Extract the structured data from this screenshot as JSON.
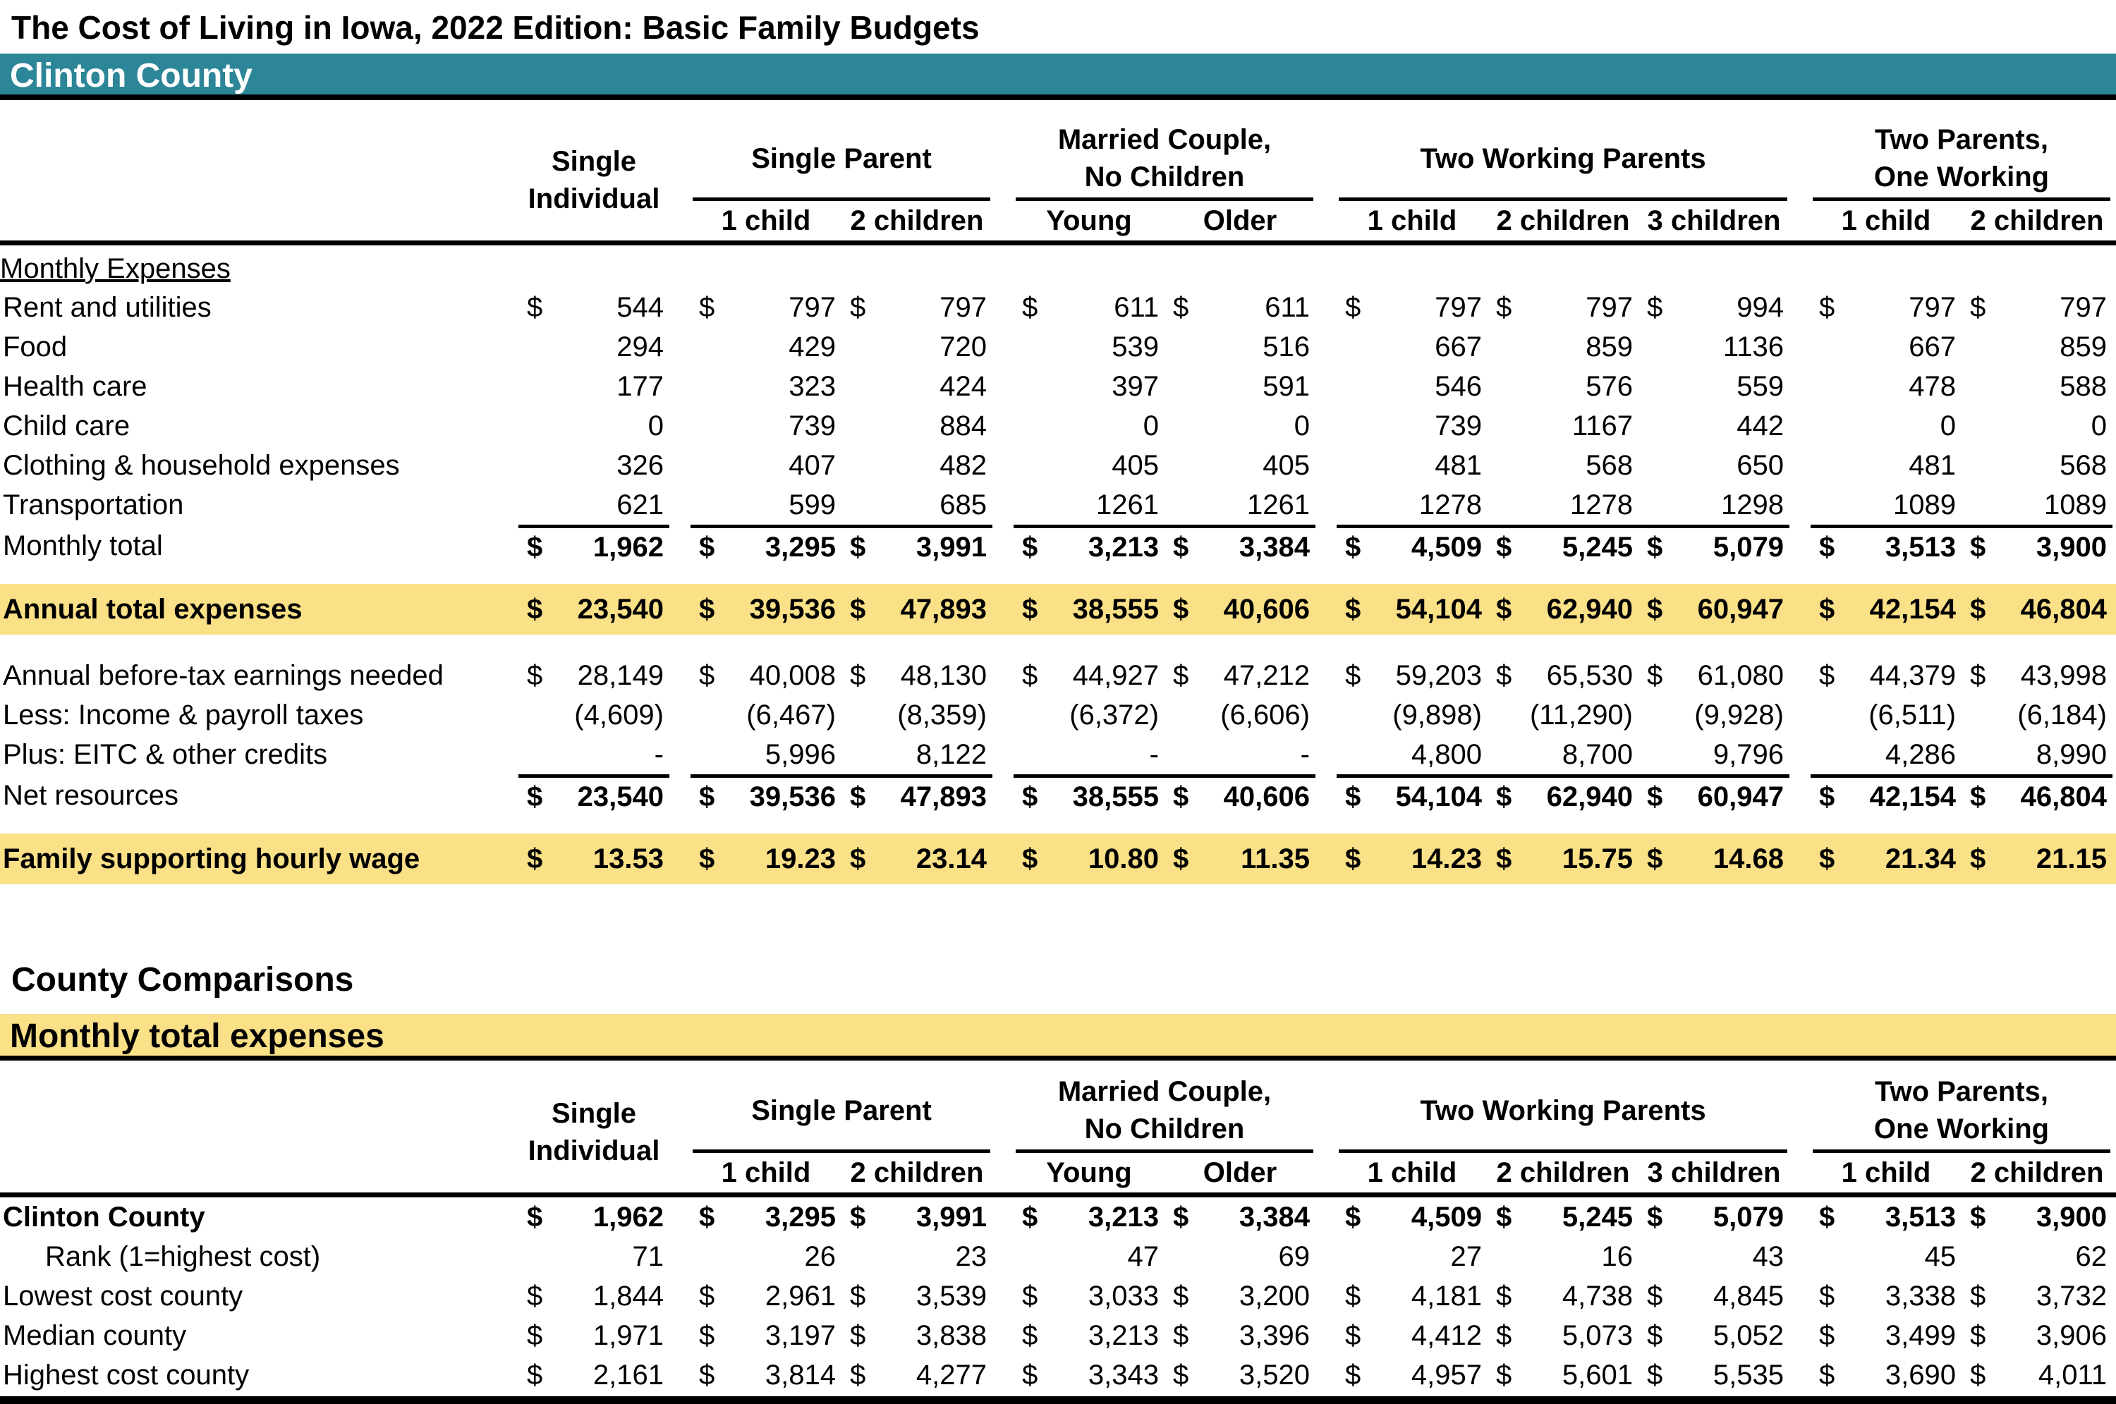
{
  "title": "The Cost of Living in Iowa, 2022 Edition: Basic Family Budgets",
  "county": "Clinton County",
  "colors": {
    "teal": "#2D8698",
    "yellow": "#FAE086",
    "text": "#000000"
  },
  "groups": [
    {
      "line1": "Single",
      "line2": "Individual",
      "subs": []
    },
    {
      "line1": "Single Parent",
      "subs": [
        "1 child",
        "2 children"
      ]
    },
    {
      "line1": "Married Couple,",
      "line2": "No Children",
      "subs": [
        "Young",
        "Older"
      ]
    },
    {
      "line1": "Two Working Parents",
      "subs": [
        "1 child",
        "2 children",
        "3 children"
      ]
    },
    {
      "line1": "Two Parents,",
      "line2": "One Working",
      "subs": [
        "1 child",
        "2 children"
      ]
    }
  ],
  "table1": {
    "section_label": "Monthly Expenses",
    "rows": [
      {
        "label": "Rent and utilities",
        "dollar": true,
        "values": [
          "544",
          "797",
          "797",
          "611",
          "611",
          "797",
          "797",
          "994",
          "797",
          "797"
        ]
      },
      {
        "label": "Food",
        "values": [
          "294",
          "429",
          "720",
          "539",
          "516",
          "667",
          "859",
          "1136",
          "667",
          "859"
        ]
      },
      {
        "label": "Health care",
        "values": [
          "177",
          "323",
          "424",
          "397",
          "591",
          "546",
          "576",
          "559",
          "478",
          "588"
        ]
      },
      {
        "label": "Child care",
        "values": [
          "0",
          "739",
          "884",
          "0",
          "0",
          "739",
          "1167",
          "442",
          "0",
          "0"
        ]
      },
      {
        "label": "Clothing & household expenses",
        "values": [
          "326",
          "407",
          "482",
          "405",
          "405",
          "481",
          "568",
          "650",
          "481",
          "568"
        ]
      },
      {
        "label": "Transportation",
        "values": [
          "621",
          "599",
          "685",
          "1261",
          "1261",
          "1278",
          "1278",
          "1298",
          "1089",
          "1089"
        ]
      },
      {
        "label": "Monthly total",
        "dollar": true,
        "values": [
          "1,962",
          "3,295",
          "3,991",
          "3,213",
          "3,384",
          "4,509",
          "5,245",
          "5,079",
          "3,513",
          "3,900"
        ]
      },
      {
        "label": "Annual total expenses",
        "dollar": true,
        "values": [
          "23,540",
          "39,536",
          "47,893",
          "38,555",
          "40,606",
          "54,104",
          "62,940",
          "60,947",
          "42,154",
          "46,804"
        ]
      },
      {
        "label": "Annual before-tax earnings needed",
        "dollar": true,
        "values": [
          "28,149",
          "40,008",
          "48,130",
          "44,927",
          "47,212",
          "59,203",
          "65,530",
          "61,080",
          "44,379",
          "43,998"
        ]
      },
      {
        "label": "Less: Income & payroll taxes",
        "values": [
          "(4,609)",
          "(6,467)",
          "(8,359)",
          "(6,372)",
          "(6,606)",
          "(9,898)",
          "(11,290)",
          "(9,928)",
          "(6,511)",
          "(6,184)"
        ]
      },
      {
        "label": "Plus: EITC & other credits",
        "values": [
          "-",
          "5,996",
          "8,122",
          "-",
          "-",
          "4,800",
          "8,700",
          "9,796",
          "4,286",
          "8,990"
        ]
      },
      {
        "label": "Net resources",
        "dollar": true,
        "values": [
          "23,540",
          "39,536",
          "47,893",
          "38,555",
          "40,606",
          "54,104",
          "62,940",
          "60,947",
          "42,154",
          "46,804"
        ]
      },
      {
        "label": "Family supporting hourly wage",
        "dollar": true,
        "values": [
          "13.53",
          "19.23",
          "23.14",
          "10.80",
          "11.35",
          "14.23",
          "15.75",
          "14.68",
          "21.34",
          "21.15"
        ]
      }
    ]
  },
  "comparisons_heading": "County Comparisons",
  "table2": {
    "banner": "Monthly total expenses",
    "rows": [
      {
        "label": "Clinton County",
        "dollar": true,
        "values": [
          "1,962",
          "3,295",
          "3,991",
          "3,213",
          "3,384",
          "4,509",
          "5,245",
          "5,079",
          "3,513",
          "3,900"
        ]
      },
      {
        "label": "Rank (1=highest cost)",
        "values": [
          "71",
          "26",
          "23",
          "47",
          "69",
          "27",
          "16",
          "43",
          "45",
          "62"
        ]
      },
      {
        "label": "Lowest cost county",
        "dollar": true,
        "values": [
          "1,844",
          "2,961",
          "3,539",
          "3,033",
          "3,200",
          "4,181",
          "4,738",
          "4,845",
          "3,338",
          "3,732"
        ]
      },
      {
        "label": "Median county",
        "dollar": true,
        "values": [
          "1,971",
          "3,197",
          "3,838",
          "3,213",
          "3,396",
          "4,412",
          "5,073",
          "5,052",
          "3,499",
          "3,906"
        ]
      },
      {
        "label": "Highest cost county",
        "dollar": true,
        "values": [
          "2,161",
          "3,814",
          "4,277",
          "3,343",
          "3,520",
          "4,957",
          "5,601",
          "5,535",
          "3,690",
          "4,011"
        ]
      }
    ]
  }
}
